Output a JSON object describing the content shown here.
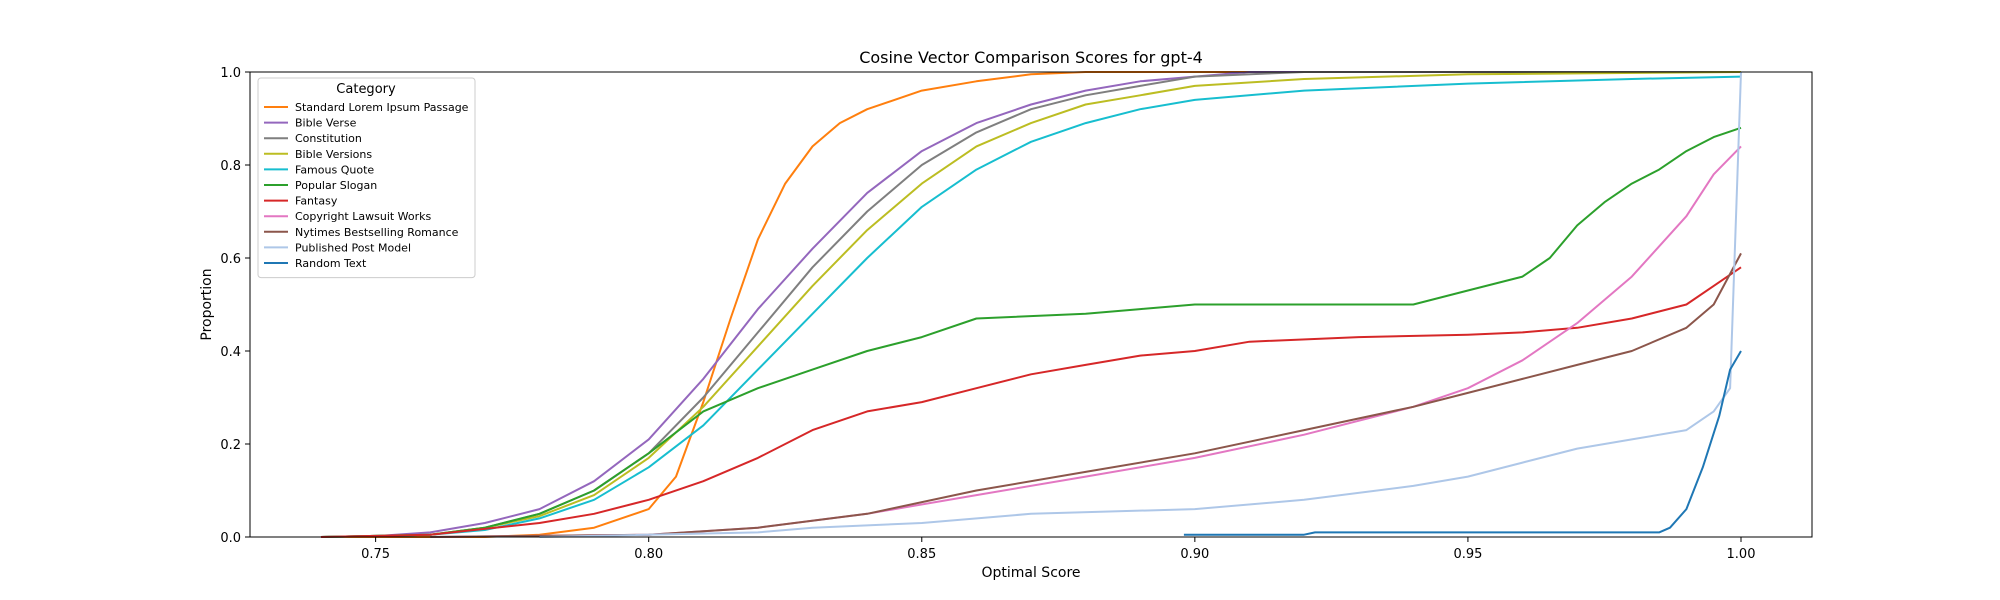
{
  "chart_data": {
    "type": "line",
    "title": "Cosine Vector Comparison Scores for gpt-4",
    "xlabel": "Optimal Score",
    "ylabel": "Proportion",
    "xlim": [
      0.727,
      1.013
    ],
    "ylim": [
      0.0,
      1.0
    ],
    "xticks": [
      0.75,
      0.8,
      0.85,
      0.9,
      0.95,
      1.0
    ],
    "xtick_labels": [
      "0.75",
      "0.80",
      "0.85",
      "0.90",
      "0.95",
      "1.00"
    ],
    "yticks": [
      0.0,
      0.2,
      0.4,
      0.6,
      0.8,
      1.0
    ],
    "ytick_labels": [
      "0.0",
      "0.2",
      "0.4",
      "0.6",
      "0.8",
      "1.0"
    ],
    "grid": false,
    "legend": {
      "title": "Category",
      "placement": "upper-left"
    },
    "series": [
      {
        "name": "Standard Lorem Ipsum Passage",
        "color": "#ff7f0e",
        "x": [
          0.74,
          0.77,
          0.78,
          0.79,
          0.8,
          0.805,
          0.81,
          0.815,
          0.82,
          0.825,
          0.83,
          0.835,
          0.84,
          0.85,
          0.86,
          0.87,
          0.88,
          1.0
        ],
        "y": [
          0.0,
          0.0,
          0.005,
          0.02,
          0.06,
          0.13,
          0.29,
          0.47,
          0.64,
          0.76,
          0.84,
          0.89,
          0.92,
          0.96,
          0.98,
          0.995,
          1.0,
          1.0
        ]
      },
      {
        "name": "Bible Verse",
        "color": "#9467bd",
        "x": [
          0.74,
          0.75,
          0.76,
          0.77,
          0.78,
          0.79,
          0.8,
          0.81,
          0.82,
          0.83,
          0.84,
          0.85,
          0.86,
          0.87,
          0.88,
          0.89,
          0.9,
          0.91,
          1.0
        ],
        "y": [
          0.0,
          0.002,
          0.01,
          0.03,
          0.06,
          0.12,
          0.21,
          0.34,
          0.49,
          0.62,
          0.74,
          0.83,
          0.89,
          0.93,
          0.96,
          0.98,
          0.99,
          1.0,
          1.0
        ]
      },
      {
        "name": "Constitution",
        "color": "#7f7f7f",
        "x": [
          0.74,
          0.76,
          0.77,
          0.78,
          0.79,
          0.8,
          0.81,
          0.82,
          0.83,
          0.84,
          0.85,
          0.86,
          0.87,
          0.88,
          0.89,
          0.9,
          0.92,
          1.0
        ],
        "y": [
          0.0,
          0.005,
          0.02,
          0.05,
          0.1,
          0.18,
          0.3,
          0.44,
          0.58,
          0.7,
          0.8,
          0.87,
          0.92,
          0.95,
          0.97,
          0.99,
          1.0,
          1.0
        ]
      },
      {
        "name": "Bible Versions",
        "color": "#bcbd22",
        "x": [
          0.74,
          0.76,
          0.77,
          0.78,
          0.79,
          0.8,
          0.81,
          0.82,
          0.83,
          0.84,
          0.85,
          0.86,
          0.87,
          0.88,
          0.89,
          0.9,
          0.92,
          0.95,
          1.0
        ],
        "y": [
          0.0,
          0.005,
          0.02,
          0.045,
          0.09,
          0.17,
          0.28,
          0.41,
          0.54,
          0.66,
          0.76,
          0.84,
          0.89,
          0.93,
          0.95,
          0.97,
          0.985,
          0.995,
          1.0
        ]
      },
      {
        "name": "Famous Quote",
        "color": "#17becf",
        "x": [
          0.74,
          0.76,
          0.77,
          0.78,
          0.79,
          0.8,
          0.81,
          0.82,
          0.83,
          0.84,
          0.85,
          0.86,
          0.87,
          0.88,
          0.89,
          0.9,
          0.92,
          0.95,
          0.98,
          1.0
        ],
        "y": [
          0.0,
          0.005,
          0.015,
          0.04,
          0.08,
          0.15,
          0.24,
          0.36,
          0.48,
          0.6,
          0.71,
          0.79,
          0.85,
          0.89,
          0.92,
          0.94,
          0.96,
          0.975,
          0.985,
          0.99
        ]
      },
      {
        "name": "Popular Slogan",
        "color": "#2ca02c",
        "x": [
          0.74,
          0.76,
          0.77,
          0.78,
          0.79,
          0.8,
          0.81,
          0.82,
          0.83,
          0.84,
          0.85,
          0.86,
          0.88,
          0.89,
          0.9,
          0.94,
          0.95,
          0.96,
          0.965,
          0.97,
          0.975,
          0.98,
          0.985,
          0.99,
          0.995,
          1.0
        ],
        "y": [
          0.0,
          0.005,
          0.02,
          0.05,
          0.1,
          0.18,
          0.27,
          0.32,
          0.36,
          0.4,
          0.43,
          0.47,
          0.48,
          0.49,
          0.5,
          0.5,
          0.53,
          0.56,
          0.6,
          0.67,
          0.72,
          0.76,
          0.79,
          0.83,
          0.86,
          0.88
        ]
      },
      {
        "name": "Fantasy",
        "color": "#d62728",
        "x": [
          0.74,
          0.76,
          0.78,
          0.79,
          0.8,
          0.81,
          0.82,
          0.83,
          0.84,
          0.85,
          0.86,
          0.87,
          0.88,
          0.89,
          0.9,
          0.91,
          0.93,
          0.95,
          0.96,
          0.97,
          0.98,
          0.99,
          0.995,
          1.0
        ],
        "y": [
          0.0,
          0.005,
          0.03,
          0.05,
          0.08,
          0.12,
          0.17,
          0.23,
          0.27,
          0.29,
          0.32,
          0.35,
          0.37,
          0.39,
          0.4,
          0.42,
          0.43,
          0.435,
          0.44,
          0.45,
          0.47,
          0.5,
          0.54,
          0.58
        ]
      },
      {
        "name": "Copyright Lawsuit Works",
        "color": "#e377c2",
        "x": [
          0.76,
          0.8,
          0.82,
          0.84,
          0.86,
          0.88,
          0.9,
          0.92,
          0.94,
          0.95,
          0.96,
          0.97,
          0.98,
          0.99,
          0.995,
          1.0
        ],
        "y": [
          0.0,
          0.005,
          0.02,
          0.05,
          0.09,
          0.13,
          0.17,
          0.22,
          0.28,
          0.32,
          0.38,
          0.46,
          0.56,
          0.69,
          0.78,
          0.84
        ]
      },
      {
        "name": "Nytimes Bestselling Romance",
        "color": "#8c564b",
        "x": [
          0.76,
          0.8,
          0.82,
          0.84,
          0.86,
          0.88,
          0.9,
          0.92,
          0.94,
          0.95,
          0.96,
          0.97,
          0.98,
          0.99,
          0.995,
          1.0
        ],
        "y": [
          0.0,
          0.005,
          0.02,
          0.05,
          0.1,
          0.14,
          0.18,
          0.23,
          0.28,
          0.31,
          0.34,
          0.37,
          0.4,
          0.45,
          0.5,
          0.61
        ]
      },
      {
        "name": "Published Post Model",
        "color": "#aec7e8",
        "x": [
          0.78,
          0.82,
          0.83,
          0.85,
          0.87,
          0.9,
          0.92,
          0.94,
          0.95,
          0.96,
          0.97,
          0.98,
          0.99,
          0.995,
          0.998,
          1.0
        ],
        "y": [
          0.0,
          0.01,
          0.02,
          0.03,
          0.05,
          0.06,
          0.08,
          0.11,
          0.13,
          0.16,
          0.19,
          0.21,
          0.23,
          0.27,
          0.32,
          1.0
        ]
      },
      {
        "name": "Random Text",
        "color": "#1f77b4",
        "x": [
          0.898,
          0.92,
          0.922,
          0.985,
          0.987,
          0.99,
          0.993,
          0.996,
          0.998,
          1.0
        ],
        "y": [
          0.005,
          0.005,
          0.01,
          0.01,
          0.02,
          0.06,
          0.15,
          0.26,
          0.36,
          0.4
        ]
      }
    ]
  }
}
